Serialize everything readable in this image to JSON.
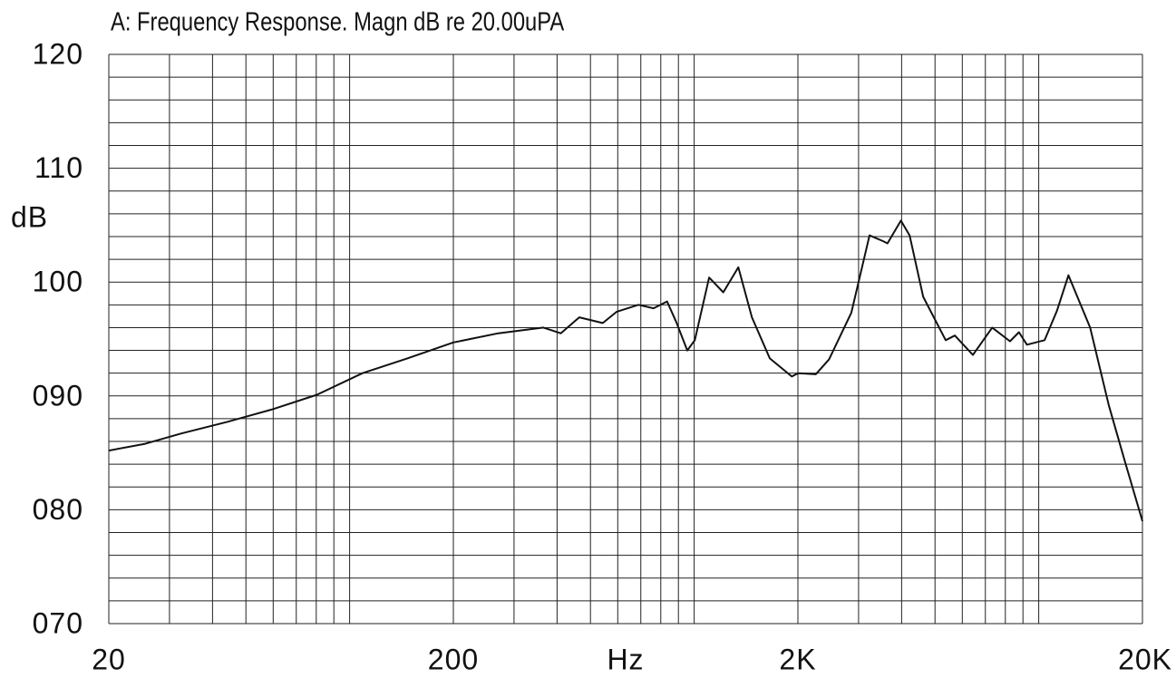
{
  "chart_data": {
    "type": "line",
    "title": "A: Frequency Response. Magn dB re 20.00uPA",
    "ylabel": "dB",
    "xlabel": "Hz",
    "x_log": true,
    "grid": true,
    "xlim": [
      20,
      20000
    ],
    "xticks": [
      20,
      200,
      {
        "value": 2000,
        "label": "2K"
      },
      {
        "value": 20000,
        "label": "20K"
      }
    ],
    "x_minor_ticks": [
      30,
      40,
      50,
      60,
      70,
      80,
      90,
      100,
      300,
      400,
      500,
      600,
      700,
      800,
      900,
      1000,
      3000,
      4000,
      5000,
      6000,
      7000,
      8000,
      9000,
      10000
    ],
    "ylim": [
      70,
      120
    ],
    "yticks": [
      {
        "value": 70,
        "label": "070"
      },
      {
        "value": 80,
        "label": "080"
      },
      {
        "value": 90,
        "label": "090"
      },
      100,
      110,
      120
    ],
    "y_minor_ticks": [
      72,
      74,
      76,
      78,
      82,
      84,
      86,
      88,
      92,
      94,
      96,
      98,
      102,
      104,
      106,
      108,
      112,
      114,
      116,
      118
    ],
    "series": [
      {
        "color": "#111111",
        "x": [
          20,
          25.5,
          32.5,
          43.9,
          59.3,
          80.4,
          109,
          147,
          200,
          270,
          365,
          410,
          464,
          543,
          596,
          689,
          762,
          834,
          887,
          955,
          1004,
          1105,
          1215,
          1343,
          1471,
          1657,
          1920,
          2000,
          2253,
          2462,
          2858,
          3228,
          3530,
          3640,
          3980,
          4220,
          4620,
          5370,
          5710,
          6440,
          7330,
          8250,
          8760,
          9240,
          10400,
          11300,
          12200,
          14100,
          15960,
          17800,
          20000
        ],
        "values": [
          85.2,
          85.8,
          86.7,
          87.7,
          88.8,
          90.1,
          92.0,
          93.3,
          94.7,
          95.5,
          96.0,
          95.5,
          96.9,
          96.4,
          97.4,
          98.0,
          97.7,
          98.3,
          96.5,
          94.0,
          94.9,
          100.4,
          99.1,
          101.3,
          96.9,
          93.3,
          91.7,
          92.0,
          91.9,
          93.2,
          97.3,
          104.1,
          103.6,
          103.4,
          105.4,
          104.1,
          98.7,
          94.9,
          95.3,
          93.6,
          96.0,
          94.8,
          95.6,
          94.5,
          94.9,
          97.5,
          100.6,
          96.0,
          89.2,
          84.2,
          79.0
        ]
      }
    ]
  }
}
